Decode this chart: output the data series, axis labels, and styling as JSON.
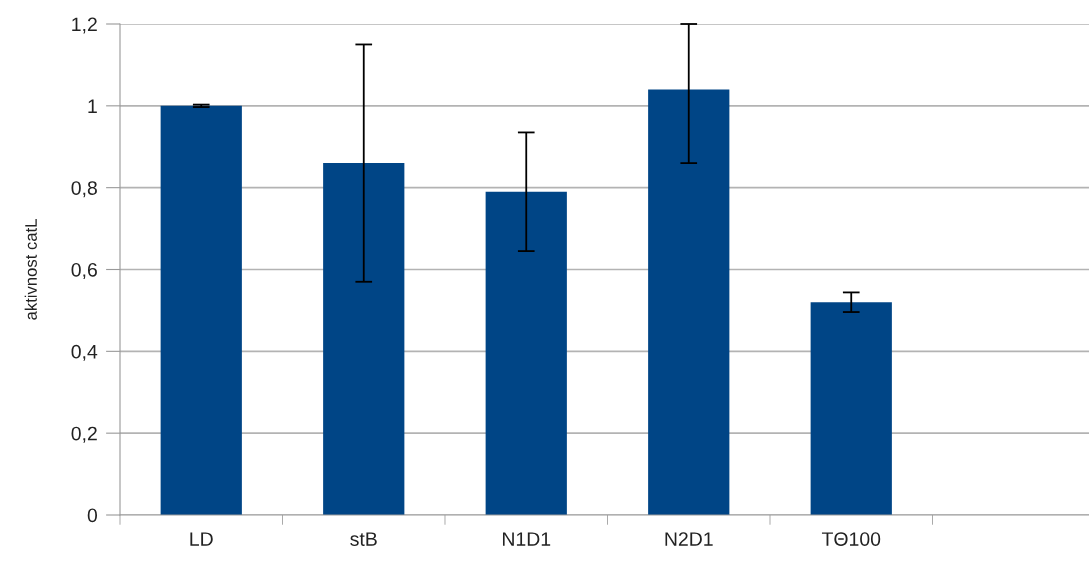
{
  "chart_data": {
    "type": "bar",
    "ylabel": "aktivnost catL",
    "categories": [
      "LD",
      "stB",
      "N1D1",
      "N2D1",
      "TΘ100",
      null
    ],
    "values": [
      1.0,
      0.86,
      0.79,
      1.04,
      0.52,
      null
    ],
    "errors": [
      0.003,
      0.29,
      0.145,
      [
        0.86,
        1.2
      ],
      0.024,
      null
    ],
    "color": "#004586",
    "ylim": [
      0,
      1.2
    ],
    "yticks": [
      0,
      {
        "value": 0.2,
        "label": "0,2"
      },
      {
        "value": 0.4,
        "label": "0,4"
      },
      {
        "value": 0.6,
        "label": "0,6"
      },
      {
        "value": 0.8,
        "label": "0,8"
      },
      1,
      {
        "value": 1.2,
        "label": "1,2"
      }
    ],
    "grid": "y",
    "legend": false
  }
}
